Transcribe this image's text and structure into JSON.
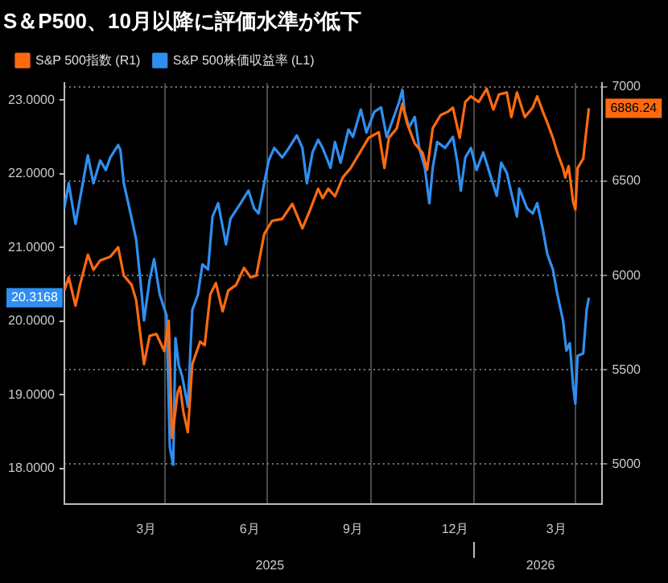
{
  "chart_data": {
    "type": "line",
    "title": "S＆P500、10月以降に評価水準が低下",
    "series": [
      {
        "name": "S&P 500指数 (R1)",
        "color": "#ff6a10",
        "axis": "y2",
        "x": [
          "2025-01-01",
          "2025-01-05",
          "2025-01-11",
          "2025-01-15",
          "2025-01-22",
          "2025-01-27",
          "2025-02-02",
          "2025-02-11",
          "2025-02-18",
          "2025-02-23",
          "2025-03-02",
          "2025-03-06",
          "2025-03-13",
          "2025-03-18",
          "2025-03-24",
          "2025-03-31",
          "2025-04-04",
          "2025-04-07",
          "2025-04-12",
          "2025-04-14",
          "2025-04-17",
          "2025-04-21",
          "2025-04-25",
          "2025-05-02",
          "2025-05-06",
          "2025-05-11",
          "2025-05-16",
          "2025-05-22",
          "2025-05-27",
          "2025-06-03",
          "2025-06-10",
          "2025-06-16",
          "2025-06-21",
          "2025-06-28",
          "2025-07-05",
          "2025-07-14",
          "2025-07-23",
          "2025-08-01",
          "2025-08-08",
          "2025-08-15",
          "2025-08-19",
          "2025-08-24",
          "2025-08-30",
          "2025-09-06",
          "2025-09-13",
          "2025-09-20",
          "2025-09-29",
          "2025-10-08",
          "2025-10-13",
          "2025-10-17",
          "2025-10-24",
          "2025-10-29",
          "2025-11-02",
          "2025-11-09",
          "2025-11-16",
          "2025-11-20",
          "2025-11-25",
          "2025-12-02",
          "2025-12-09",
          "2025-12-13",
          "2025-12-19",
          "2025-12-24",
          "2025-12-29",
          "2026-01-05",
          "2026-01-12",
          "2026-01-18",
          "2026-01-23",
          "2026-01-30",
          "2026-02-03",
          "2026-02-08",
          "2026-02-15",
          "2026-02-22",
          "2026-02-26",
          "2026-03-03",
          "2026-03-07",
          "2026-03-12",
          "2026-03-16",
          "2026-03-21",
          "2026-03-23",
          "2026-03-26",
          "2026-03-30",
          "2026-04-01",
          "2026-04-03",
          "2026-04-08",
          "2026-04-11",
          "2026-04-13"
        ],
        "values": [
          5920,
          5990,
          5840,
          5950,
          6110,
          6030,
          6080,
          6100,
          6150,
          6000,
          5950,
          5870,
          5530,
          5680,
          5690,
          5600,
          5760,
          5140,
          5380,
          5410,
          5280,
          5170,
          5530,
          5650,
          5630,
          5900,
          5960,
          5810,
          5920,
          5950,
          6040,
          5990,
          6000,
          6220,
          6290,
          6300,
          6380,
          6250,
          6350,
          6460,
          6410,
          6460,
          6420,
          6520,
          6570,
          6640,
          6730,
          6760,
          6570,
          6730,
          6780,
          6910,
          6810,
          6700,
          6650,
          6560,
          6780,
          6850,
          6870,
          6890,
          6730,
          6920,
          6950,
          6920,
          6990,
          6880,
          6960,
          6970,
          6840,
          6970,
          6840,
          6890,
          6950,
          6870,
          6810,
          6730,
          6650,
          6570,
          6520,
          6580,
          6390,
          6350,
          6570,
          6620,
          6780,
          6886.24
        ]
      },
      {
        "name": "S&P 500株価収益率 (L1)",
        "color": "#2f8ff0",
        "axis": "y",
        "x": [
          "2025-01-01",
          "2025-01-05",
          "2025-01-11",
          "2025-01-15",
          "2025-01-22",
          "2025-01-27",
          "2025-02-02",
          "2025-02-07",
          "2025-02-11",
          "2025-02-18",
          "2025-02-20",
          "2025-02-23",
          "2025-02-27",
          "2025-03-06",
          "2025-03-11",
          "2025-03-13",
          "2025-03-18",
          "2025-03-22",
          "2025-03-27",
          "2025-04-02",
          "2025-04-05",
          "2025-04-08",
          "2025-04-10",
          "2025-04-13",
          "2025-04-16",
          "2025-04-21",
          "2025-04-25",
          "2025-04-30",
          "2025-05-04",
          "2025-05-09",
          "2025-05-13",
          "2025-05-18",
          "2025-05-25",
          "2025-05-29",
          "2025-06-07",
          "2025-06-14",
          "2025-06-19",
          "2025-06-23",
          "2025-06-28",
          "2025-07-02",
          "2025-07-07",
          "2025-07-14",
          "2025-07-20",
          "2025-07-27",
          "2025-08-01",
          "2025-08-05",
          "2025-08-10",
          "2025-08-15",
          "2025-08-19",
          "2025-08-26",
          "2025-08-30",
          "2025-09-04",
          "2025-09-11",
          "2025-09-15",
          "2025-09-22",
          "2025-09-27",
          "2025-10-04",
          "2025-10-10",
          "2025-10-15",
          "2025-10-26",
          "2025-10-29",
          "2025-10-31",
          "2025-11-04",
          "2025-11-09",
          "2025-11-13",
          "2025-11-18",
          "2025-11-22",
          "2025-11-25",
          "2025-11-29",
          "2025-12-06",
          "2025-12-13",
          "2025-12-17",
          "2025-12-20",
          "2025-12-24",
          "2025-12-29",
          "2026-01-03",
          "2026-01-09",
          "2026-01-21",
          "2026-01-25",
          "2026-01-30",
          "2026-02-03",
          "2026-02-08",
          "2026-02-10",
          "2026-02-17",
          "2026-02-22",
          "2026-02-26",
          "2026-03-03",
          "2026-03-07",
          "2026-03-12",
          "2026-03-16",
          "2026-03-21",
          "2026-03-24",
          "2026-03-27",
          "2026-03-30",
          "2026-04-01",
          "2026-04-03",
          "2026-04-08",
          "2026-04-11",
          "2026-04-13"
        ],
        "values": [
          21.53,
          21.87,
          21.32,
          21.66,
          22.25,
          21.87,
          22.18,
          22.05,
          22.22,
          22.39,
          22.32,
          21.87,
          21.6,
          21.11,
          20.36,
          20.01,
          20.56,
          20.84,
          20.36,
          20.08,
          18.29,
          18.05,
          19.77,
          19.39,
          19.25,
          18.84,
          20.15,
          20.36,
          20.77,
          20.7,
          21.42,
          21.6,
          21.04,
          21.39,
          21.6,
          21.77,
          21.53,
          21.46,
          21.87,
          22.18,
          22.35,
          22.22,
          22.35,
          22.52,
          22.35,
          21.87,
          22.29,
          22.46,
          22.35,
          22.08,
          22.43,
          22.15,
          22.6,
          22.5,
          22.87,
          22.56,
          22.84,
          22.9,
          22.5,
          22.97,
          23.14,
          22.84,
          22.63,
          22.77,
          22.35,
          22.08,
          21.6,
          22.08,
          22.43,
          22.35,
          22.5,
          22.15,
          21.77,
          22.22,
          22.35,
          22.05,
          22.29,
          21.7,
          22.15,
          22.01,
          21.74,
          21.42,
          21.8,
          21.53,
          21.46,
          21.6,
          21.25,
          20.91,
          20.7,
          20.36,
          20.01,
          19.6,
          19.7,
          19.12,
          18.88,
          19.53,
          19.56,
          20.15,
          20.3168
        ]
      }
    ],
    "xlim": [
      "2025-01-01",
      "2026-04-25"
    ],
    "xticks": [
      {
        "value": "2025-03-15",
        "label": "3月"
      },
      {
        "value": "2025-04-01",
        "label": null
      },
      {
        "value": "2025-06-15",
        "label": "6月"
      },
      {
        "value": "2025-07-01",
        "label": null
      },
      {
        "value": "2025-09-15",
        "label": "9月"
      },
      {
        "value": "2025-10-01",
        "label": null
      },
      {
        "value": "2025-12-15",
        "label": "12月"
      },
      {
        "value": "2026-01-01",
        "label": null
      },
      {
        "value": "2026-03-15",
        "label": "3月"
      },
      {
        "value": "2026-04-01",
        "label": null
      }
    ],
    "x2lim": [
      "2025-01-01",
      "2026-04-25"
    ],
    "x2ticks": [
      {
        "value": "2025-07-03",
        "label": "2025"
      },
      {
        "value": "2026-01-01",
        "label": null
      },
      {
        "value": "2026-03-01",
        "label": "2026"
      }
    ],
    "ylim": [
      17.52,
      23.23
    ],
    "yticks": [
      {
        "value": 18,
        "label": "18.0000"
      },
      {
        "value": 19,
        "label": "19.0000"
      },
      {
        "value": 20,
        "label": "20.0000"
      },
      {
        "value": 21,
        "label": "21.0000"
      },
      {
        "value": 22,
        "label": "22.0000"
      },
      {
        "value": 23,
        "label": "23.0000"
      }
    ],
    "y2lim": [
      4790,
      7020
    ],
    "y2ticks": [
      5000,
      5500,
      6000,
      6500,
      7000
    ],
    "annotations": [
      "6886.24",
      "20.3168"
    ],
    "grid": true,
    "legend": "top left"
  }
}
